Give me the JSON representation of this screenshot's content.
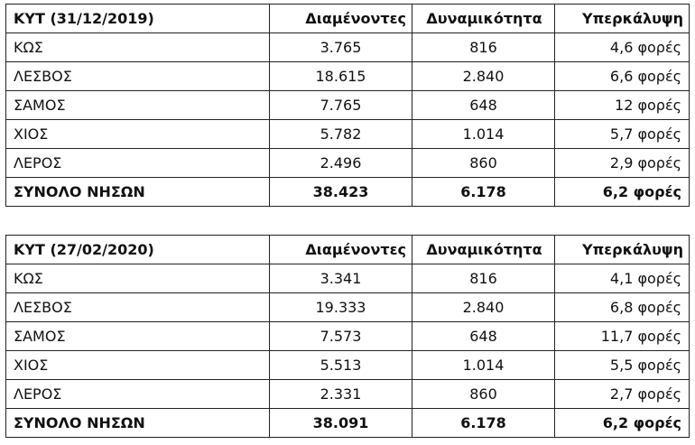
{
  "columns": {
    "residents": "Διαμένοντες",
    "capacity": "Δυναμικότητα",
    "coverage": "Υπερκάλυψη"
  },
  "tables": [
    {
      "title": "ΚΥΤ (31/12/2019)",
      "rows": [
        {
          "name": "ΚΩΣ",
          "residents": "3.765",
          "capacity": "816",
          "coverage": "4,6 φορές"
        },
        {
          "name": "ΛΕΣΒΟΣ",
          "residents": "18.615",
          "capacity": "2.840",
          "coverage": "6,6 φορές"
        },
        {
          "name": "ΣΑΜΟΣ",
          "residents": "7.765",
          "capacity": "648",
          "coverage": "12 φορές"
        },
        {
          "name": "ΧΙΟΣ",
          "residents": "5.782",
          "capacity": "1.014",
          "coverage": "5,7 φορές"
        },
        {
          "name": "ΛΕΡΟΣ",
          "residents": "2.496",
          "capacity": "860",
          "coverage": "2,9 φορές"
        }
      ],
      "total": {
        "name": "ΣΥΝΟΛΟ ΝΗΣΩΝ",
        "residents": "38.423",
        "capacity": "6.178",
        "coverage": "6,2 φορές"
      }
    },
    {
      "title": "ΚΥΤ (27/02/2020)",
      "rows": [
        {
          "name": "ΚΩΣ",
          "residents": "3.341",
          "capacity": "816",
          "coverage": "4,1 φορές"
        },
        {
          "name": "ΛΕΣΒΟΣ",
          "residents": "19.333",
          "capacity": "2.840",
          "coverage": "6,8 φορές"
        },
        {
          "name": "ΣΑΜΟΣ",
          "residents": "7.573",
          "capacity": "648",
          "coverage": "11,7 φορές"
        },
        {
          "name": "ΧΙΟΣ",
          "residents": "5.513",
          "capacity": "1.014",
          "coverage": "5,5 φορές"
        },
        {
          "name": "ΛΕΡΟΣ",
          "residents": "2.331",
          "capacity": "860",
          "coverage": "2,7 φορές"
        }
      ],
      "total": {
        "name": "ΣΥΝΟΛΟ ΝΗΣΩΝ",
        "residents": "38.091",
        "capacity": "6.178",
        "coverage": "6,2 φορές"
      }
    }
  ]
}
